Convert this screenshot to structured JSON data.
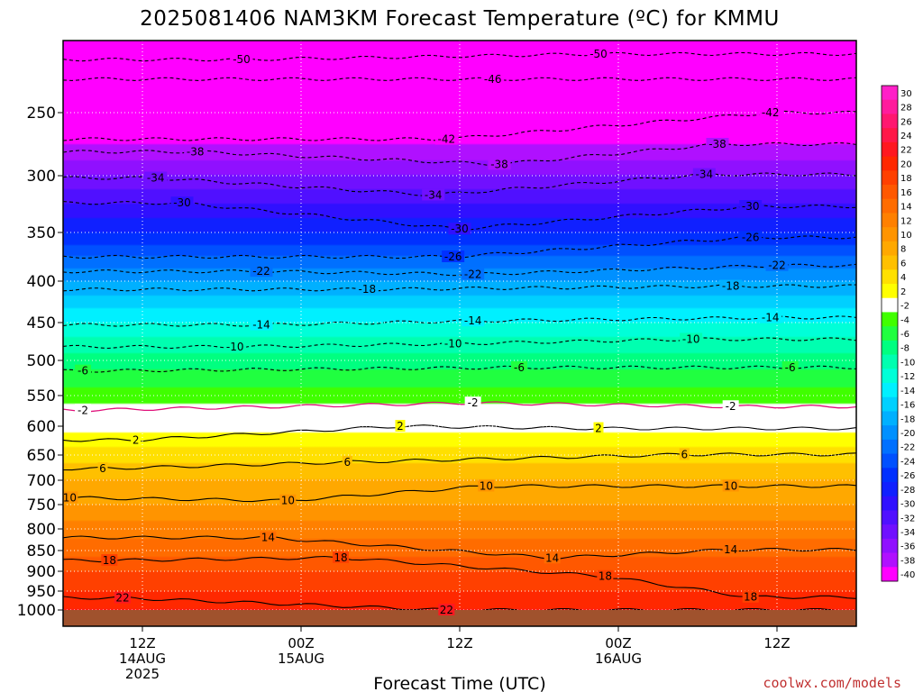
{
  "title": "2025081406 NAM3KM Forecast Temperature (ºC) for KMMU",
  "credit": "coolwx.com/models",
  "chart_data": {
    "type": "heatmap",
    "title": "2025081406 NAM3KM Forecast Temperature (ºC) for KMMU",
    "xlabel": "Forecast Time (UTC)",
    "ylabel": "",
    "y_axis": {
      "scale": "pressure (reversed, log-like)",
      "range": [
        1000,
        200
      ],
      "ticks": [
        "250",
        "300",
        "350",
        "400",
        "450",
        "500",
        "550",
        "600",
        "650",
        "700",
        "750",
        "800",
        "850",
        "900",
        "950",
        "1000"
      ]
    },
    "x_axis": {
      "range_hours": [
        0,
        60
      ],
      "ticks": [
        {
          "l1": "12Z",
          "l2": "14AUG",
          "l3": "2025"
        },
        {
          "l1": "00Z",
          "l2": "15AUG",
          "l3": ""
        },
        {
          "l1": "12Z",
          "l2": "",
          "l3": ""
        },
        {
          "l1": "00Z",
          "l2": "16AUG",
          "l3": ""
        },
        {
          "l1": "12Z",
          "l2": "",
          "l3": ""
        }
      ]
    },
    "colorbar": {
      "labels": [
        "30",
        "28",
        "26",
        "24",
        "22",
        "20",
        "18",
        "16",
        "14",
        "12",
        "10",
        "8",
        "6",
        "4",
        "2",
        "-2",
        "-4",
        "-6",
        "-8",
        "-10",
        "-12",
        "-14",
        "-16",
        "-18",
        "-20",
        "-22",
        "-24",
        "-26",
        "-28",
        "-30",
        "-32",
        "-34",
        "-36",
        "-38",
        "-40"
      ],
      "colors": [
        "#ff20c8",
        "#ff1c9c",
        "#ff1870",
        "#ff1848",
        "#ff1820",
        "#ff2800",
        "#ff4000",
        "#ff5800",
        "#ff6c00",
        "#ff8000",
        "#ff9400",
        "#ffa800",
        "#ffc000",
        "#ffe000",
        "#ffff00",
        "#ffffff",
        "#40ff00",
        "#20ff40",
        "#00ff80",
        "#00ffb0",
        "#00ffd8",
        "#00f0ff",
        "#00d0ff",
        "#00b0ff",
        "#0090ff",
        "#0070ff",
        "#0050ff",
        "#0030ff",
        "#1020ff",
        "#3010ff",
        "#5010ff",
        "#7010ff",
        "#9010ff",
        "#b010ff",
        "#ff00ff"
      ]
    },
    "profile": {
      "pressure_hpa": [
        1000,
        950,
        900,
        850,
        800,
        750,
        700,
        650,
        600,
        550,
        500,
        450,
        400,
        350,
        300,
        250,
        200
      ],
      "temp_c": [
        22,
        20,
        18,
        15,
        13,
        10,
        8,
        5,
        1,
        -3,
        -7,
        -12,
        -18,
        -26,
        -34,
        -42,
        -52
      ]
    },
    "contour_labels": [
      {
        "text": "-50",
        "t": 13.5,
        "p": 212
      },
      {
        "text": "-50",
        "t": 40.5,
        "p": 208
      },
      {
        "text": "-46",
        "t": 32.5,
        "p": 226
      },
      {
        "text": "-42",
        "t": 29,
        "p": 271
      },
      {
        "text": "-42",
        "t": 53.5,
        "p": 250
      },
      {
        "text": "-38",
        "t": 10,
        "p": 281
      },
      {
        "text": "-38",
        "t": 33,
        "p": 291
      },
      {
        "text": "-38",
        "t": 49.5,
        "p": 275
      },
      {
        "text": "-34",
        "t": 7,
        "p": 302
      },
      {
        "text": "-34",
        "t": 28,
        "p": 317
      },
      {
        "text": "-34",
        "t": 48.5,
        "p": 299
      },
      {
        "text": "-30",
        "t": 9,
        "p": 324
      },
      {
        "text": "-30",
        "t": 30,
        "p": 347
      },
      {
        "text": "-30",
        "t": 52,
        "p": 327
      },
      {
        "text": "-26",
        "t": 29.5,
        "p": 375
      },
      {
        "text": "-26",
        "t": 52,
        "p": 355
      },
      {
        "text": "-22",
        "t": 15,
        "p": 390
      },
      {
        "text": "-22",
        "t": 31,
        "p": 393
      },
      {
        "text": "-22",
        "t": 54,
        "p": 384
      },
      {
        "text": "-18",
        "t": 23,
        "p": 410
      },
      {
        "text": "-18",
        "t": 50.5,
        "p": 406
      },
      {
        "text": "-14",
        "t": 15,
        "p": 453
      },
      {
        "text": "-14",
        "t": 31,
        "p": 448
      },
      {
        "text": "-14",
        "t": 53.5,
        "p": 444
      },
      {
        "text": "-10",
        "t": 13,
        "p": 482
      },
      {
        "text": "-10",
        "t": 29.5,
        "p": 478
      },
      {
        "text": "-10",
        "t": 47.5,
        "p": 472
      },
      {
        "text": "-6",
        "t": 1.5,
        "p": 515
      },
      {
        "text": "-6",
        "t": 34.5,
        "p": 510
      },
      {
        "text": "-6",
        "t": 55,
        "p": 510
      },
      {
        "text": "-2",
        "t": 1.5,
        "p": 574
      },
      {
        "text": "-2",
        "t": 31,
        "p": 562
      },
      {
        "text": "-2",
        "t": 50.5,
        "p": 568
      },
      {
        "text": "2",
        "t": 25.5,
        "p": 600
      },
      {
        "text": "2",
        "t": 5.5,
        "p": 624
      },
      {
        "text": "2",
        "t": 40.5,
        "p": 604
      },
      {
        "text": "6",
        "t": 3,
        "p": 677
      },
      {
        "text": "6",
        "t": 21.5,
        "p": 664
      },
      {
        "text": "6",
        "t": 47,
        "p": 649
      },
      {
        "text": "10",
        "t": 0.5,
        "p": 736
      },
      {
        "text": "10",
        "t": 17,
        "p": 742
      },
      {
        "text": "10",
        "t": 32,
        "p": 712
      },
      {
        "text": "10",
        "t": 50.5,
        "p": 712
      },
      {
        "text": "14",
        "t": 15.5,
        "p": 820
      },
      {
        "text": "14",
        "t": 37,
        "p": 868
      },
      {
        "text": "14",
        "t": 50.5,
        "p": 848
      },
      {
        "text": "18",
        "t": 3.5,
        "p": 874
      },
      {
        "text": "18",
        "t": 21,
        "p": 867
      },
      {
        "text": "18",
        "t": 41,
        "p": 913
      },
      {
        "text": "18",
        "t": 52,
        "p": 966
      },
      {
        "text": "22",
        "t": 4.5,
        "p": 968
      },
      {
        "text": "22",
        "t": 29,
        "p": 1000
      }
    ]
  }
}
